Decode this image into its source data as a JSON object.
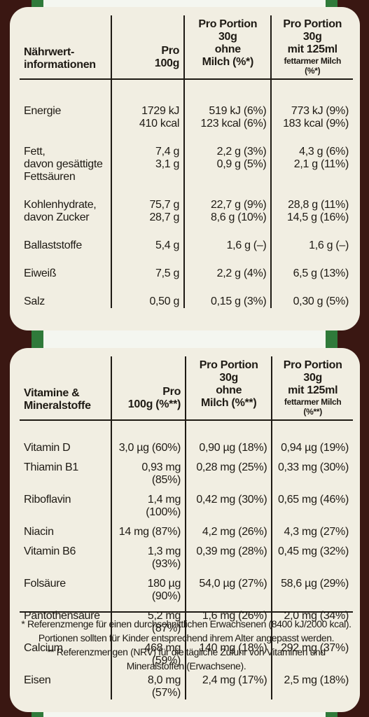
{
  "nutrition": {
    "headers": {
      "label": "Nährwert-\ninformationen",
      "per100": "Pro\n100g",
      "portion_plain": "Pro Portion 30g\nohne\nMilch (%*)",
      "portion_milk_main": "Pro Portion 30g\nmit 125ml",
      "portion_milk_sub": "fettarmer Milch (%*)"
    },
    "rows": [
      {
        "label": "Energie",
        "per100": "1729 kJ\n410 kcal",
        "plain": "519 kJ (6%)\n123 kcal (6%)",
        "milk": "773 kJ (9%)\n183 kcal (9%)"
      },
      {
        "label": "Fett,\ndavon gesättigte\nFettsäuren",
        "per100": "7,4 g\n3,1 g",
        "plain": "2,2 g (3%)\n0,9 g (5%)",
        "milk": "4,3 g (6%)\n2,1 g (11%)"
      },
      {
        "label": "Kohlenhydrate,\ndavon Zucker",
        "per100": "75,7 g\n28,7 g",
        "plain": "22,7 g (9%)\n8,6 g (10%)",
        "milk": "28,8 g (11%)\n14,5 g (16%)"
      },
      {
        "label": "Ballaststoffe",
        "per100": "5,4 g",
        "plain": "1,6 g (–)",
        "milk": "1,6 g (–)"
      },
      {
        "label": "Eiweiß",
        "per100": "7,5 g",
        "plain": "2,2 g (4%)",
        "milk": "6,5 g (13%)"
      },
      {
        "label": "Salz",
        "per100": "0,50 g",
        "plain": "0,15 g (3%)",
        "milk": "0,30 g (5%)"
      }
    ]
  },
  "vitamins": {
    "headers": {
      "label": "Vitamine &\nMineralstoffe",
      "per100": "Pro\n100g (%**)",
      "portion_plain": "Pro Portion 30g\nohne\nMilch (%**)",
      "portion_milk_main": "Pro Portion 30g\nmit 125ml",
      "portion_milk_sub": "fettarmer Milch (%**)"
    },
    "rows": [
      {
        "label": "Vitamin D",
        "per100": "3,0 µg (60%)",
        "plain": "0,90 µg (18%)",
        "milk": "0,94 µg (19%)"
      },
      {
        "label": "Thiamin B1",
        "per100": "0,93 mg (85%)",
        "plain": "0,28 mg (25%)",
        "milk": "0,33 mg (30%)"
      },
      {
        "label": "Riboflavin",
        "per100": "1,4 mg (100%)",
        "plain": "0,42 mg (30%)",
        "milk": "0,65 mg (46%)"
      },
      {
        "label": "Niacin",
        "per100": "14 mg (87%)",
        "plain": "4,2 mg (26%)",
        "milk": "4,3 mg (27%)"
      },
      {
        "label": "Vitamin B6",
        "per100": "1,3 mg (93%)",
        "plain": "0,39 mg (28%)",
        "milk": "0,45 mg (32%)"
      },
      {
        "label": "Folsäure",
        "per100": "180 µg (90%)",
        "plain": "54,0 µg (27%)",
        "milk": "58,6 µg (29%)"
      },
      {
        "label": "Pantothensäure",
        "per100": "5,2 mg (87%)",
        "plain": "1,6 mg (26%)",
        "milk": "2,0 mg (34%)"
      },
      {
        "label": "Calcium",
        "per100": "468 mg (59%)",
        "plain": "140 mg (18%)",
        "milk": "292 mg (37%)"
      },
      {
        "label": "Eisen",
        "per100": "8,0 mg (57%)",
        "plain": "2,4 mg (17%)",
        "milk": "2,5 mg (18%)"
      }
    ],
    "footnotes": [
      "* Referenzmenge für einen durchschnittlichen Erwachsenen (8400 kJ/2000 kcal).",
      "Portionen sollten für Kinder entsprechend ihrem Alter angepasst werden.",
      "** Referenzmengen (NRV) für die tägliche Zufuhr von Vitaminen und",
      "Mineralstoffen (Erwachsene)."
    ]
  },
  "colors": {
    "background": "#3a1712",
    "band": "#2f7a3a",
    "panel": "#f1eee2",
    "text": "#1e1a14"
  }
}
